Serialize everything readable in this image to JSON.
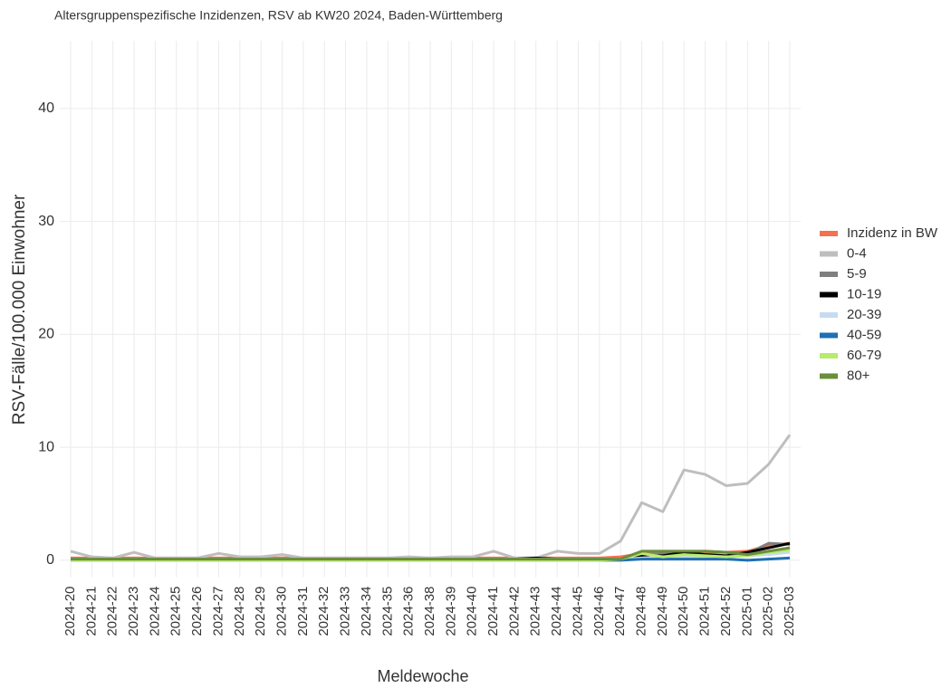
{
  "chart_data": {
    "type": "line",
    "title": "Altersgruppenspezifische Inzidenzen, RSV ab KW20 2024, Baden-Württemberg",
    "x_label": "Meldewoche",
    "y_label": "RSV-Fälle/100.000 Einwohner",
    "categories": [
      "2024-20",
      "2024-21",
      "2024-22",
      "2024-23",
      "2024-24",
      "2024-25",
      "2024-26",
      "2024-27",
      "2024-28",
      "2024-29",
      "2024-30",
      "2024-31",
      "2024-32",
      "2024-33",
      "2024-34",
      "2024-35",
      "2024-36",
      "2024-38",
      "2024-39",
      "2024-40",
      "2024-41",
      "2024-42",
      "2024-43",
      "2024-44",
      "2024-45",
      "2024-46",
      "2024-47",
      "2024-48",
      "2024-49",
      "2024-50",
      "2024-51",
      "2024-52",
      "2025-01",
      "2025-02",
      "2025-03"
    ],
    "ylim": [
      -1.5,
      46
    ],
    "yticks": [
      0,
      10,
      20,
      30,
      40
    ],
    "grid": true,
    "legend": "right",
    "series": [
      {
        "name": "Inzidenz in BW",
        "color": "#f4704f",
        "values": [
          0.2,
          0.2,
          0.2,
          0.2,
          0.2,
          0.2,
          0.2,
          0.2,
          0.2,
          0.2,
          0.2,
          0.2,
          0.2,
          0.2,
          0.2,
          0.2,
          0.2,
          0.2,
          0.2,
          0.2,
          0.2,
          0.2,
          0.2,
          0.2,
          0.2,
          0.2,
          0.3,
          0.6,
          0.6,
          0.7,
          0.7,
          0.7,
          0.8,
          1.3,
          1.5
        ]
      },
      {
        "name": "0-4",
        "color": "#bebebe",
        "values": [
          0.8,
          0.3,
          0.2,
          0.7,
          0.2,
          0.2,
          0.2,
          0.6,
          0.3,
          0.3,
          0.5,
          0.2,
          0.2,
          0.2,
          0.2,
          0.2,
          0.3,
          0.2,
          0.3,
          0.3,
          0.8,
          0.2,
          0.2,
          0.8,
          0.6,
          0.6,
          1.7,
          5.1,
          4.3,
          8.0,
          7.6,
          6.6,
          6.8,
          8.5,
          11.1
        ]
      },
      {
        "name": "5-9",
        "color": "#7f7f7f",
        "values": [
          0.1,
          0.1,
          0.1,
          0.1,
          0.1,
          0.1,
          0.1,
          0.1,
          0.1,
          0.1,
          0.1,
          0.1,
          0.1,
          0.1,
          0.1,
          0.1,
          0.1,
          0.1,
          0.1,
          0.1,
          0.1,
          0.1,
          0.1,
          0.1,
          0.1,
          0.1,
          0.1,
          0.5,
          0.6,
          0.7,
          0.8,
          0.7,
          0.6,
          1.5,
          1.4
        ]
      },
      {
        "name": "10-19",
        "color": "#000000",
        "values": [
          0.1,
          0.1,
          0.1,
          0.1,
          0.1,
          0.1,
          0.1,
          0.1,
          0.1,
          0.1,
          0.1,
          0.1,
          0.1,
          0.1,
          0.1,
          0.1,
          0.1,
          0.1,
          0.1,
          0.1,
          0.1,
          0.1,
          0.2,
          0.1,
          0.1,
          0.1,
          0.1,
          0.4,
          0.4,
          0.7,
          0.5,
          0.4,
          0.7,
          1.1,
          1.5
        ]
      },
      {
        "name": "20-39",
        "color": "#c6dbef",
        "values": [
          0.1,
          0.1,
          0.1,
          0.1,
          0.1,
          0.1,
          0.1,
          0.1,
          0.1,
          0.1,
          0.1,
          0.1,
          0.1,
          0.1,
          0.1,
          0.1,
          0.1,
          0.1,
          0.1,
          0.1,
          0.1,
          0.1,
          0.1,
          0.1,
          0.1,
          0.1,
          0.1,
          0.2,
          0.3,
          0.3,
          0.3,
          0.3,
          0.4,
          0.5,
          0.7
        ]
      },
      {
        "name": "40-59",
        "color": "#1f6fb4",
        "values": [
          0,
          0,
          0,
          0,
          0,
          0,
          0,
          0,
          0,
          0,
          0,
          0,
          0,
          0,
          0,
          0,
          0,
          0,
          0,
          0,
          0,
          0,
          0,
          0,
          0,
          0,
          0,
          0.1,
          0.1,
          0.1,
          0.1,
          0.1,
          0,
          0.1,
          0.2
        ]
      },
      {
        "name": "60-79",
        "color": "#b8eb6a",
        "values": [
          0,
          0,
          0,
          0,
          0,
          0,
          0,
          0,
          0,
          0,
          0,
          0,
          0,
          0,
          0,
          0,
          0,
          0,
          0,
          0,
          0,
          0,
          0,
          0,
          0,
          0,
          0.1,
          0.6,
          0.3,
          0.5,
          0.4,
          0.3,
          0.4,
          0.7,
          0.9
        ]
      },
      {
        "name": "80+",
        "color": "#6b8e3a",
        "values": [
          0.1,
          0.1,
          0.1,
          0.1,
          0.1,
          0.1,
          0.1,
          0.1,
          0.1,
          0.1,
          0.1,
          0.1,
          0.1,
          0.1,
          0.1,
          0.1,
          0.1,
          0.1,
          0.1,
          0.1,
          0.1,
          0.1,
          0.1,
          0.1,
          0.1,
          0.1,
          0.1,
          0.8,
          0.8,
          0.8,
          0.8,
          0.7,
          0.5,
          0.8,
          1.1
        ]
      }
    ]
  }
}
